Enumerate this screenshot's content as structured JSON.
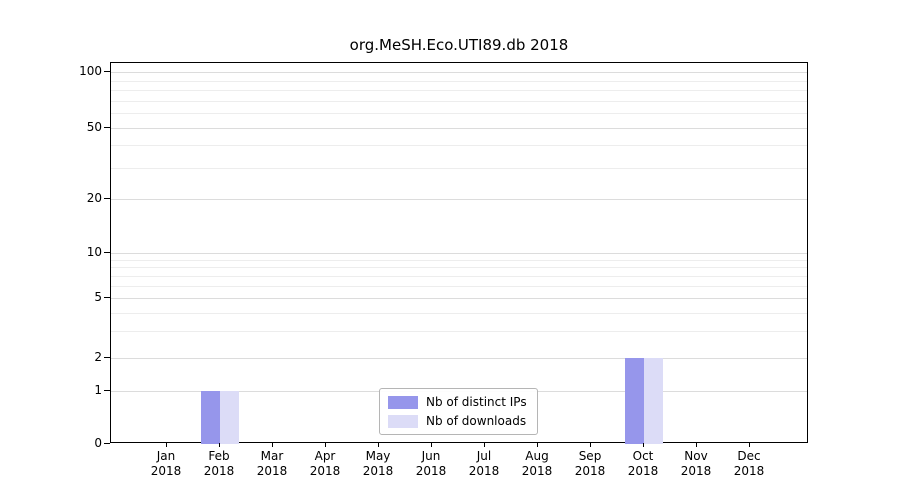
{
  "title": "org.MeSH.Eco.UTI89.db 2018",
  "chart_data": {
    "type": "bar",
    "title": "org.MeSH.Eco.UTI89.db 2018",
    "categories": [
      "Jan",
      "Feb",
      "Mar",
      "Apr",
      "May",
      "Jun",
      "Jul",
      "Aug",
      "Sep",
      "Oct",
      "Nov",
      "Dec"
    ],
    "year": "2018",
    "series": [
      {
        "name": "Nb of distinct IPs",
        "color": "#9696eb",
        "values": [
          0,
          1,
          0,
          0,
          0,
          0,
          0,
          0,
          0,
          2,
          0,
          0
        ]
      },
      {
        "name": "Nb of downloads",
        "color": "#dcdcf7",
        "values": [
          0,
          1,
          0,
          0,
          0,
          0,
          0,
          0,
          0,
          2,
          0,
          0
        ]
      }
    ],
    "yticks": [
      0,
      1,
      2,
      5,
      10,
      20,
      50,
      100
    ],
    "scale": "symlog",
    "ylim": [
      0,
      110
    ],
    "grid": true,
    "legend_position": "bottom-center",
    "xlabel": "",
    "ylabel": ""
  }
}
